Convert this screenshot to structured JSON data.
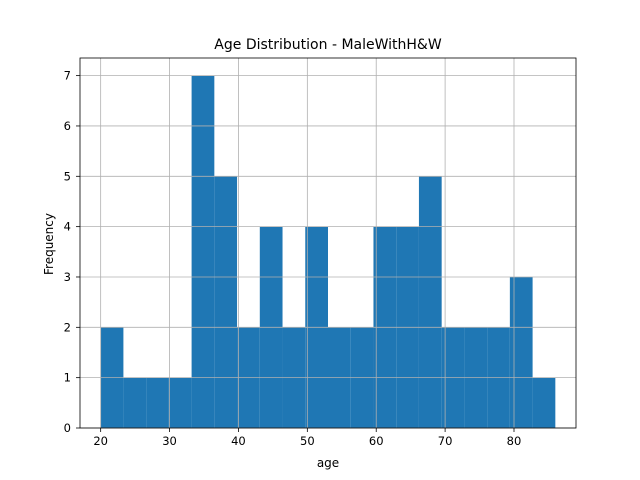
{
  "chart_data": {
    "type": "bar",
    "title": "Age Distribution - MaleWithH&W",
    "xlabel": "age",
    "ylabel": "Frequency",
    "xlim": [
      17,
      89
    ],
    "ylim": [
      0,
      7.35
    ],
    "xticks": [
      20,
      30,
      40,
      50,
      60,
      70,
      80
    ],
    "yticks": [
      0,
      1,
      2,
      3,
      4,
      5,
      6,
      7
    ],
    "grid": true,
    "bin_edges": [
      20.0,
      23.3,
      26.6,
      29.9,
      33.2,
      36.5,
      39.8,
      43.1,
      46.4,
      49.7,
      53.0,
      56.3,
      59.6,
      62.9,
      66.2,
      69.5,
      72.8,
      76.1,
      79.4,
      82.7,
      86.0
    ],
    "values": [
      2,
      1,
      1,
      1,
      7,
      5,
      2,
      4,
      2,
      4,
      2,
      2,
      4,
      4,
      5,
      2,
      2,
      2,
      3,
      1
    ]
  }
}
